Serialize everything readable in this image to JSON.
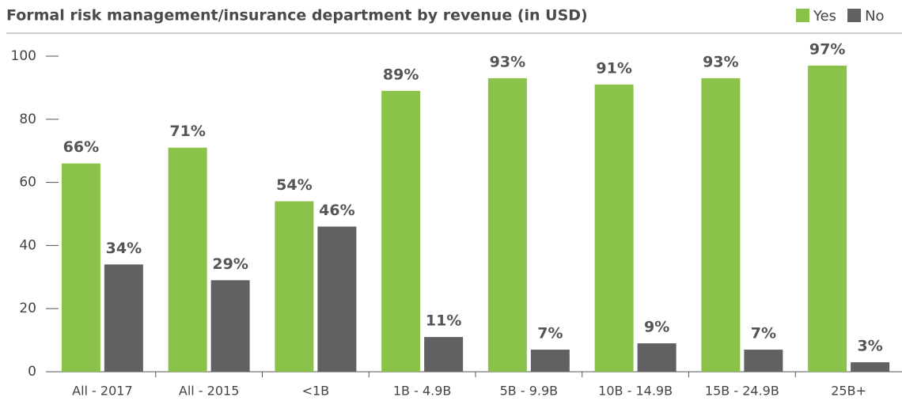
{
  "chart_data": {
    "type": "bar",
    "title": "Formal risk management/insurance department by revenue (in USD)",
    "categories": [
      "All - 2017",
      "All - 2015",
      "<1B",
      "1B - 4.9B",
      "5B - 9.9B",
      "10B - 14.9B",
      "15B - 24.9B",
      "25B+"
    ],
    "series": [
      {
        "name": "Yes",
        "color": "#8bc34a",
        "values": [
          66,
          71,
          54,
          89,
          93,
          91,
          93,
          97
        ],
        "value_labels": [
          "66%",
          "71%",
          "54%",
          "89%",
          "93%",
          "91%",
          "93%",
          "97%"
        ]
      },
      {
        "name": "No",
        "color": "#616163",
        "values": [
          34,
          29,
          46,
          11,
          7,
          9,
          7,
          3
        ],
        "value_labels": [
          "34%",
          "29%",
          "46%",
          "11%",
          "7%",
          "9%",
          "7%",
          "3%"
        ]
      }
    ],
    "ylim": [
      0,
      100
    ],
    "yticks": [
      0,
      20,
      40,
      60,
      80,
      100
    ],
    "legend": "top-right"
  }
}
